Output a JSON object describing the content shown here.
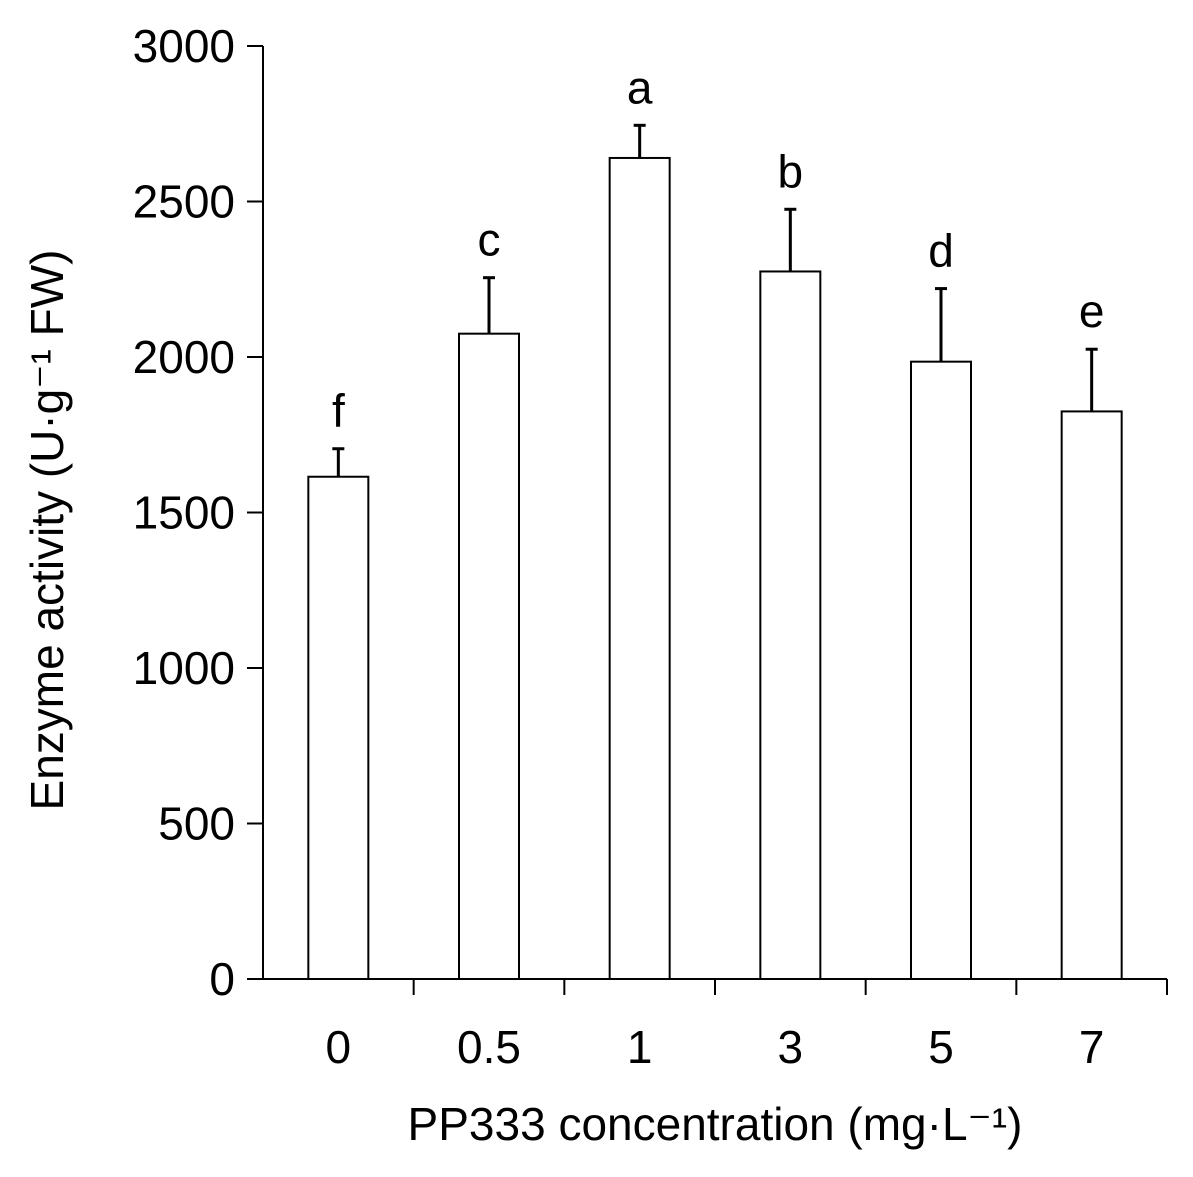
{
  "chart_data": {
    "type": "bar",
    "categories": [
      "0",
      "0.5",
      "1",
      "3",
      "5",
      "7"
    ],
    "values": [
      1615,
      2075,
      2640,
      2275,
      1985,
      1825
    ],
    "errors": [
      90,
      180,
      105,
      200,
      235,
      200
    ],
    "significance_letters": [
      "f",
      "c",
      "a",
      "b",
      "d",
      "e"
    ],
    "xlabel": "PP333 concentration (mg·L⁻¹)",
    "ylabel": "Enzyme activity (U·g⁻¹ FW)",
    "ylim": [
      0,
      3000
    ],
    "yticks": [
      "0",
      "500",
      "1000",
      "1500",
      "2000",
      "2500",
      "3000"
    ],
    "grid": false,
    "colors": {
      "bar_fill": "#ffffff",
      "bar_stroke": "#000000",
      "axis": "#000000"
    }
  }
}
